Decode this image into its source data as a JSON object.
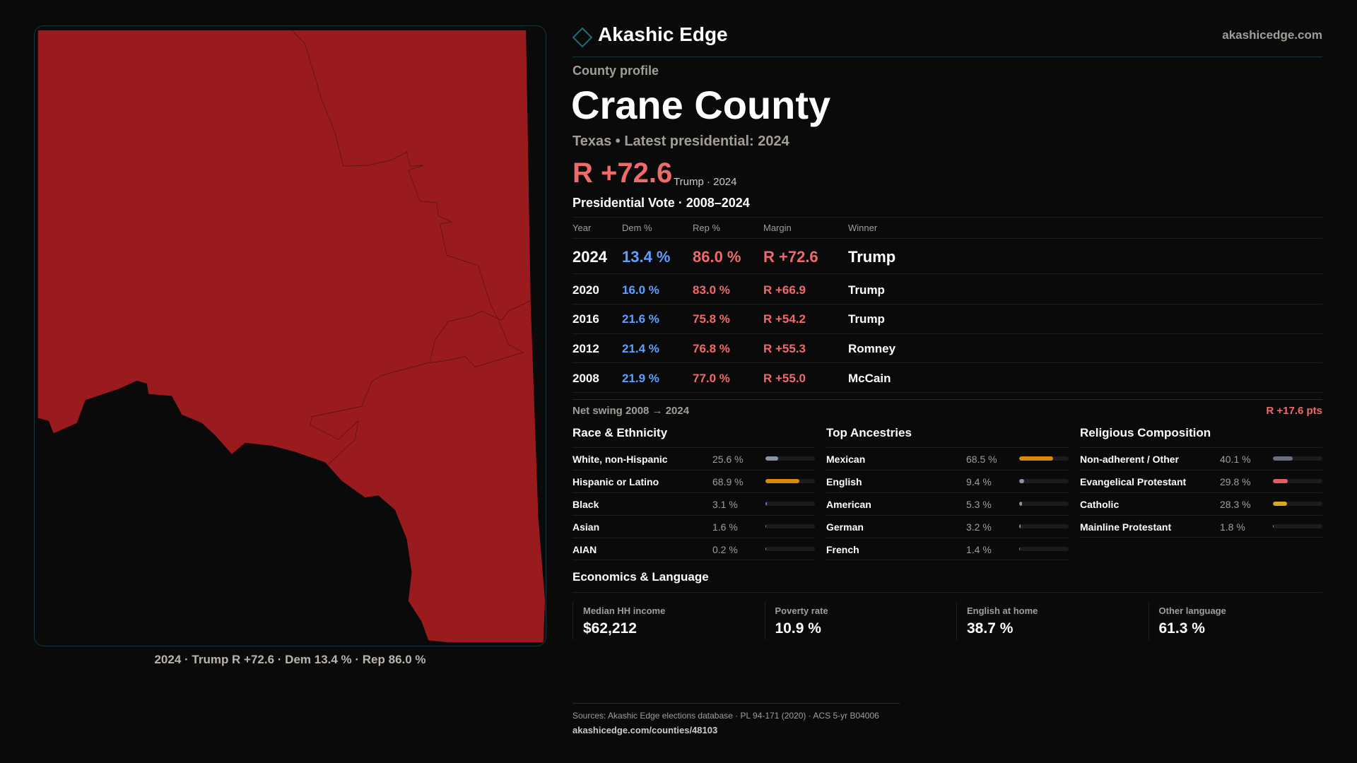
{
  "brand": {
    "name": "Akashic Edge",
    "url": "akashicedge.com",
    "logo_icon": "diamond-icon"
  },
  "header": {
    "eyebrow": "County profile",
    "title": "Crane County",
    "subtitle": "Texas • Latest presidential: 2024",
    "margin": "R +72.6",
    "margin_note": "Trump · 2024"
  },
  "map": {
    "caption": "2024 · Trump R +72.6 · Dem 13.4 % · Rep 86.0 %",
    "fill_color": "#9a1b1e"
  },
  "votes": {
    "title": "Presidential Vote · 2008–2024",
    "columns": [
      "Year",
      "Dem %",
      "Rep %",
      "Margin",
      "Winner"
    ],
    "rows": [
      {
        "year": "2024",
        "dem": "13.4 %",
        "rep": "86.0 %",
        "margin": "R +72.6",
        "winner": "Trump"
      },
      {
        "year": "2020",
        "dem": "16.0 %",
        "rep": "83.0 %",
        "margin": "R +66.9",
        "winner": "Trump"
      },
      {
        "year": "2016",
        "dem": "21.6 %",
        "rep": "75.8 %",
        "margin": "R +54.2",
        "winner": "Trump"
      },
      {
        "year": "2012",
        "dem": "21.4 %",
        "rep": "76.8 %",
        "margin": "R +55.3",
        "winner": "Romney"
      },
      {
        "year": "2008",
        "dem": "21.9 %",
        "rep": "77.0 %",
        "margin": "R +55.0",
        "winner": "McCain"
      }
    ],
    "swing_label": "Net swing 2008 → 2024",
    "swing_value": "R +17.6 pts"
  },
  "sections": [
    {
      "title": "Race & Ethnicity",
      "items": [
        {
          "label": "White, non-Hispanic",
          "value": "25.6 %",
          "pct": 25.6,
          "color": "#8a94a6"
        },
        {
          "label": "Hispanic or Latino",
          "value": "68.9 %",
          "pct": 68.9,
          "color": "#d98a0a"
        },
        {
          "label": "Black",
          "value": "3.1 %",
          "pct": 3.1,
          "color": "#8a6ad8"
        },
        {
          "label": "Asian",
          "value": "1.6 %",
          "pct": 1.6,
          "color": "#2ab08a"
        },
        {
          "label": "AIAN",
          "value": "0.2 %",
          "pct": 0.2,
          "color": "#8a94a6"
        }
      ]
    },
    {
      "title": "Top Ancestries",
      "items": [
        {
          "label": "Mexican",
          "value": "68.5 %",
          "pct": 68.5,
          "color": "#d98a0a"
        },
        {
          "label": "English",
          "value": "9.4 %",
          "pct": 9.4,
          "color": "#8a94a6"
        },
        {
          "label": "American",
          "value": "5.3 %",
          "pct": 5.3,
          "color": "#8a94a6"
        },
        {
          "label": "German",
          "value": "3.2 %",
          "pct": 3.2,
          "color": "#8a94a6"
        },
        {
          "label": "French",
          "value": "1.4 %",
          "pct": 1.4,
          "color": "#8a94a6"
        }
      ]
    },
    {
      "title": "Religious Composition",
      "items": [
        {
          "label": "Non-adherent / Other",
          "value": "40.1 %",
          "pct": 40.1,
          "color": "#6a6e80"
        },
        {
          "label": "Evangelical Protestant",
          "value": "29.8 %",
          "pct": 29.8,
          "color": "#e06060"
        },
        {
          "label": "Catholic",
          "value": "28.3 %",
          "pct": 28.3,
          "color": "#d8a820"
        },
        {
          "label": "Mainline Protestant",
          "value": "1.8 %",
          "pct": 1.8,
          "color": "#8a94a6"
        }
      ]
    }
  ],
  "economics": {
    "title": "Economics & Language",
    "cards": [
      {
        "label": "Median HH income",
        "value": "$62,212"
      },
      {
        "label": "Poverty rate",
        "value": "10.9 %"
      },
      {
        "label": "English at home",
        "value": "38.7 %"
      },
      {
        "label": "Other language",
        "value": "61.3 %"
      }
    ]
  },
  "footer": {
    "sources": "Sources: Akashic Edge elections database · PL 94-171 (2020) · ACS 5-yr B04006",
    "url": "akashicedge.com/counties/48103"
  }
}
